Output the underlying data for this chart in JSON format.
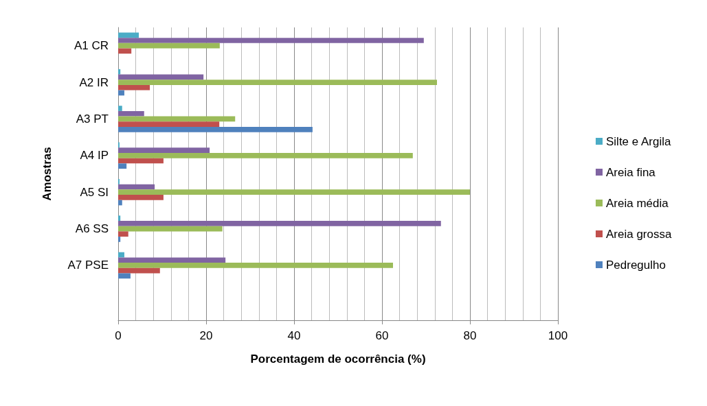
{
  "chart_data": {
    "type": "bar",
    "orientation": "horizontal",
    "xlabel": "Porcentagem de ocorrência (%)",
    "ylabel": "Amostras",
    "categories": [
      "A1 CR",
      "A2 IR",
      "A3 PT",
      "A4 IP",
      "A5 SI",
      "A6 SS",
      "A7 PSE",
      null
    ],
    "series": [
      {
        "name": "Silte e Argila",
        "color": "#4bacc6",
        "values": [
          4.7,
          0.5,
          0.9,
          0.3,
          0.3,
          0.5,
          1.4,
          null
        ]
      },
      {
        "name": "Areia fina",
        "color": "#8064a2",
        "values": [
          69.5,
          19.4,
          5.9,
          20.8,
          8.3,
          73.4,
          24.4,
          null
        ]
      },
      {
        "name": "Areia média",
        "color": "#9bbb59",
        "values": [
          23.1,
          72.5,
          26.6,
          67.0,
          80.0,
          23.7,
          62.5,
          null
        ]
      },
      {
        "name": "Areia grossa",
        "color": "#c0504d",
        "values": [
          3.0,
          7.2,
          23.0,
          10.3,
          10.3,
          2.3,
          9.5,
          null
        ]
      },
      {
        "name": "Pedregulho",
        "color": "#4f81bd",
        "values": [
          0,
          1.4,
          44.2,
          1.9,
          0.9,
          0.5,
          2.8,
          null
        ]
      }
    ],
    "xlim": [
      0,
      100
    ],
    "xticks": [
      0,
      20,
      40,
      60,
      80,
      100
    ],
    "grid": "x",
    "legend": "right"
  }
}
